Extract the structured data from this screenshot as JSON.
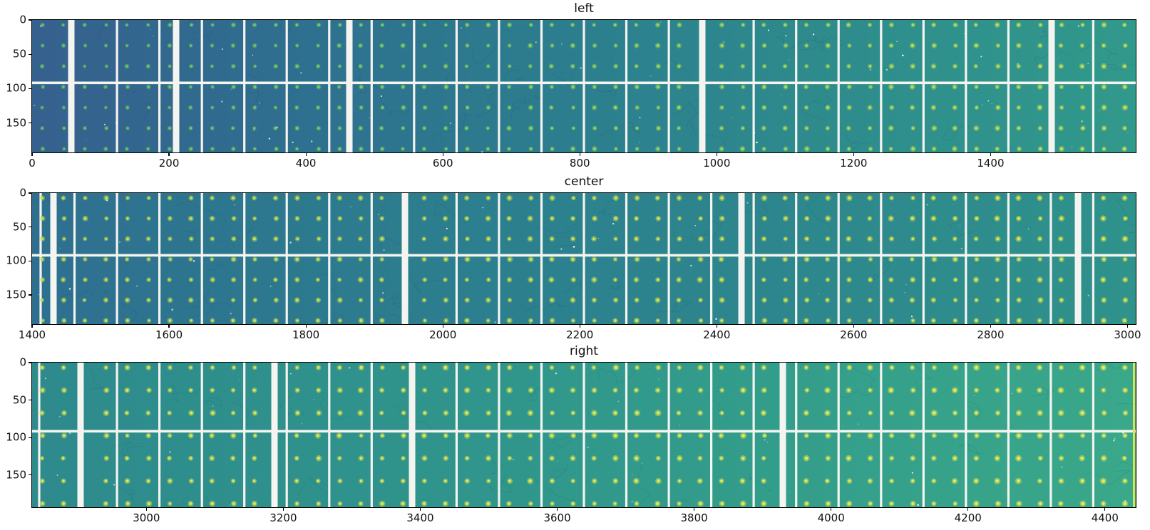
{
  "figure": {
    "background": "#ffffff",
    "text_color": "#111111",
    "divider_color": "#f4f4f0",
    "speckle_color": "#ffffff"
  },
  "chart_data": [
    {
      "type": "heatmap",
      "title": "left",
      "colormap": "viridis",
      "x_ticks": [
        0,
        200,
        400,
        600,
        800,
        1000,
        1200,
        1400
      ],
      "x_range": [
        0,
        1612
      ],
      "y_ticks": [
        0,
        50,
        100,
        150
      ],
      "y_range": [
        0,
        193
      ],
      "legend": "none",
      "grid": "off",
      "content_note": "CCD mosaic strip: teal detector segments separated by white gaps, white horizontal mid line, regular grid of bright green-yellow calibration dots, sparse white speckles",
      "render": {
        "bg_stops": [
          "#36608e",
          "#2e708f",
          "#2c7f8e",
          "#2e8d8c",
          "#31998b"
        ],
        "dot_color": [
          "#5ec962",
          "#cde04e"
        ],
        "dot_r": [
          1.5,
          1.9
        ],
        "wide_gaps": [
          55,
          202,
          445,
          940,
          1430
        ],
        "extra_dividers": [],
        "edge_strip": null,
        "texture": "rgba(25,35,95,0.12)",
        "speckles": 60,
        "seed": 11
      }
    },
    {
      "type": "heatmap",
      "title": "center",
      "colormap": "viridis",
      "x_ticks": [
        1400,
        1600,
        1800,
        2000,
        2200,
        2400,
        2600,
        2800,
        3000
      ],
      "x_range": [
        1400,
        3012
      ],
      "y_ticks": [
        0,
        50,
        100,
        150
      ],
      "y_range": [
        0,
        193
      ],
      "legend": "none",
      "grid": "off",
      "content_note": "same mosaic, middle slice, more uniform teal with yellow dots",
      "render": {
        "bg_stops": [
          "#2e6f90",
          "#2c7d8e",
          "#2d868d",
          "#2f928b"
        ],
        "dot_color": [
          "#c2dd50",
          "#e2e64c"
        ],
        "dot_r": [
          1.8,
          2.0
        ],
        "wide_gaps": [
          30,
          523,
          995,
          1467
        ],
        "extra_dividers": [
          12
        ],
        "edge_strip": null,
        "texture": "rgba(10,40,80,0.11)",
        "speckles": 40,
        "seed": 22
      }
    },
    {
      "type": "heatmap",
      "title": "right",
      "colormap": "viridis",
      "x_ticks": [
        3000,
        3200,
        3400,
        3600,
        3800,
        4000,
        4200,
        4400
      ],
      "x_range": [
        2833,
        4445
      ],
      "y_ticks": [
        0,
        50,
        100,
        150
      ],
      "y_range": [
        0,
        193
      ],
      "legend": "none",
      "grid": "off",
      "content_note": "same mosaic, right slice, greener teal, bright yellow dots, thin yellow strip at right edge",
      "render": {
        "bg_stops": [
          "#2e8a8d",
          "#2f938c",
          "#339d8b",
          "#3aa88a"
        ],
        "dot_color": [
          "#dce34d",
          "#ece951"
        ],
        "dot_r": [
          1.9,
          2.1
        ],
        "wide_gaps": [
          68,
          340,
          533,
          1053
        ],
        "extra_dividers": [
          10
        ],
        "edge_strip": {
          "color": "#dfe24b",
          "width": 3
        },
        "texture": "rgba(8,45,75,0.11)",
        "speckles": 40,
        "seed": 33
      }
    }
  ]
}
